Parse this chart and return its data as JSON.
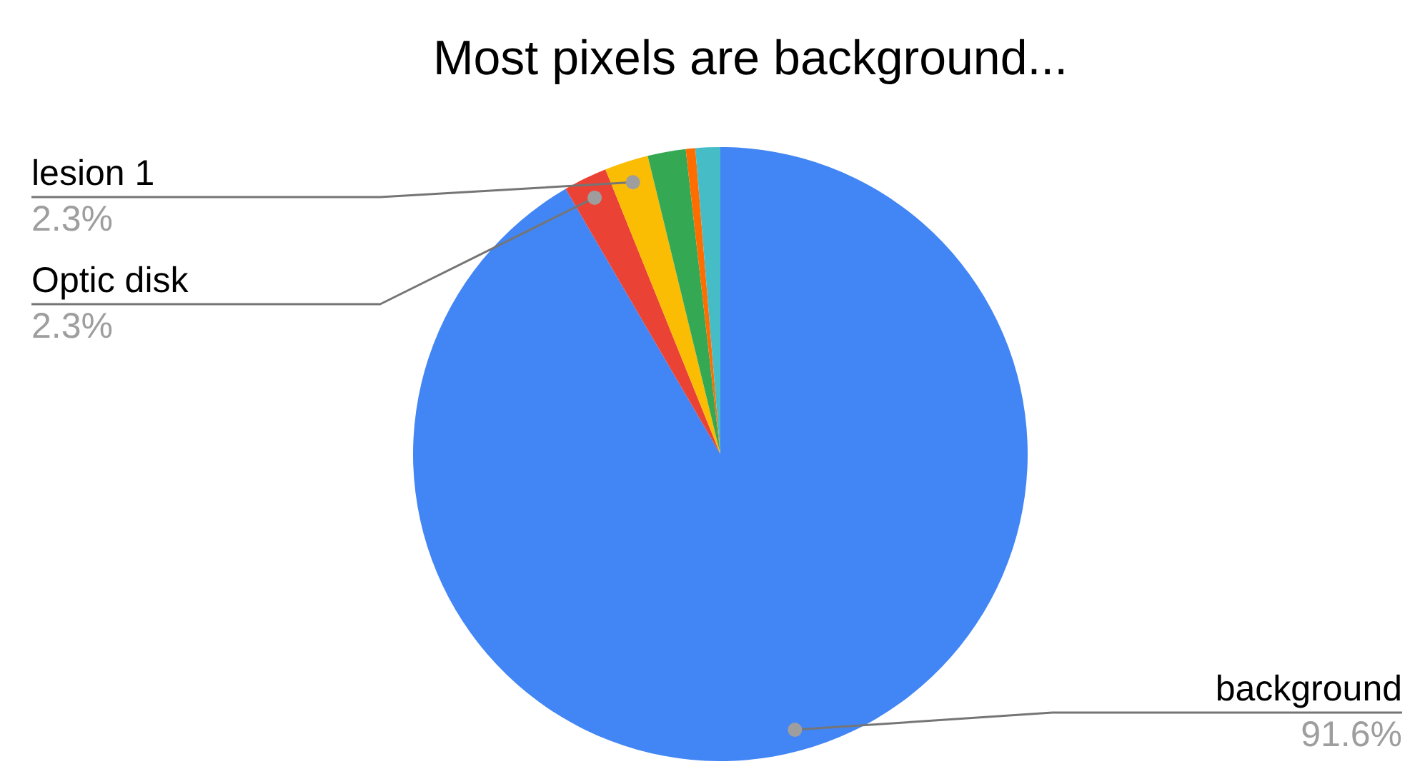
{
  "chart_data": {
    "type": "pie",
    "title": "Most pixels are background...",
    "categories": [
      "background",
      "Optic disk",
      "lesion 1",
      null,
      null,
      null
    ],
    "values": [
      91.6,
      2.3,
      2.3,
      2.0,
      0.5,
      1.3
    ],
    "value_labels": [
      "91.6%",
      "2.3%",
      "2.3%",
      null,
      null,
      null
    ],
    "colors": [
      "#4285f4",
      "#ea4335",
      "#fbbc04",
      "#34a853",
      "#ff6d01",
      "#46bdc6"
    ],
    "legend": false
  }
}
